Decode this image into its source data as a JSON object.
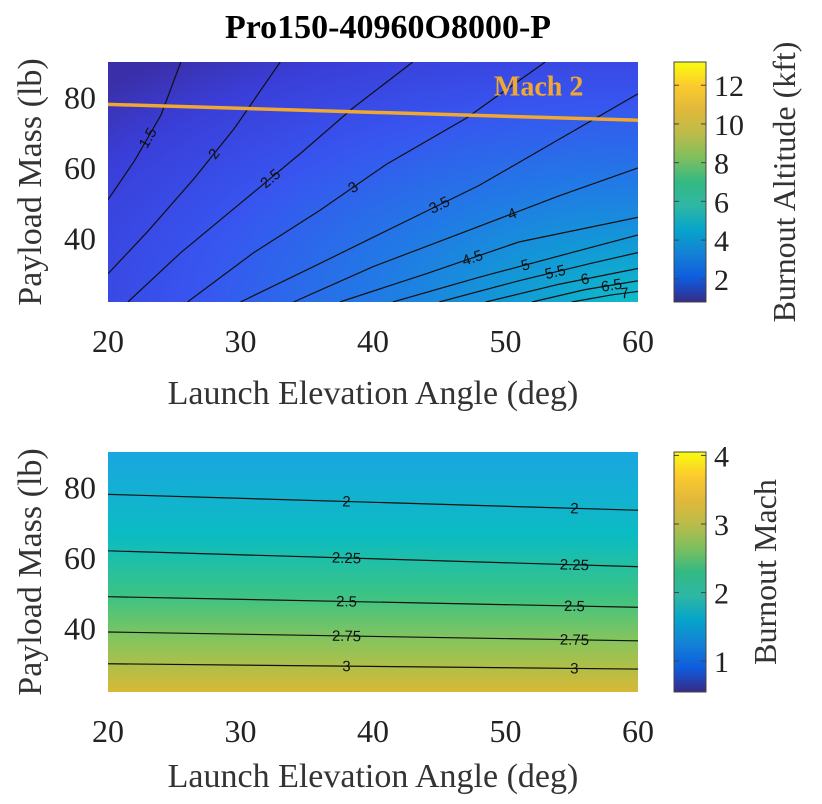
{
  "chart_data": [
    {
      "type": "contour",
      "title": "Pro150-40960O8000-P",
      "xlabel": "Launch Elevation Angle (deg)",
      "ylabel": "Payload Mass (lb)",
      "colorbar_label": "Burnout Altitude (kft)",
      "colormap": "parula",
      "xlim": [
        20,
        60
      ],
      "ylim": [
        22,
        90
      ],
      "xticks": [
        20,
        30,
        40,
        50,
        60
      ],
      "yticks": [
        40,
        60,
        80
      ],
      "clim": [
        0.8,
        13.2
      ],
      "colorbar_ticks": [
        2,
        4,
        6,
        8,
        10,
        12
      ],
      "contour_levels": [
        {
          "value": 1.5,
          "label": "1.5",
          "points": [
            [
              20,
              51
            ],
            [
              22,
              62
            ],
            [
              24,
              75
            ],
            [
              25.5,
              90
            ]
          ]
        },
        {
          "value": 2,
          "label": "2",
          "points": [
            [
              20,
              30
            ],
            [
              23,
              42
            ],
            [
              26.5,
              57
            ],
            [
              29.5,
              71
            ],
            [
              33,
              90
            ]
          ]
        },
        {
          "value": 2.5,
          "label": "2.5",
          "points": [
            [
              21.5,
              22
            ],
            [
              25.5,
              36
            ],
            [
              30,
              50
            ],
            [
              34.5,
              64
            ],
            [
              38.5,
              77
            ],
            [
              43,
              90
            ]
          ]
        },
        {
          "value": 3,
          "label": "3",
          "points": [
            [
              26,
              22
            ],
            [
              31,
              36
            ],
            [
              36,
              48
            ],
            [
              41,
              61
            ],
            [
              47,
              74
            ],
            [
              53,
              90
            ]
          ]
        },
        {
          "value": 3.5,
          "label": "3.5",
          "points": [
            [
              30,
              22
            ],
            [
              35.5,
              32
            ],
            [
              42,
              44
            ],
            [
              48,
              55
            ],
            [
              54,
              68
            ],
            [
              60,
              81
            ]
          ]
        },
        {
          "value": 4,
          "label": "4",
          "points": [
            [
              34,
              22
            ],
            [
              40,
              32
            ],
            [
              47,
              42
            ],
            [
              54,
              52
            ],
            [
              60,
              60
            ]
          ]
        },
        {
          "value": 4.5,
          "label": "4.5",
          "points": [
            [
              37.5,
              22
            ],
            [
              44,
              30
            ],
            [
              51,
              39
            ],
            [
              60,
              46
            ]
          ]
        },
        {
          "value": 5,
          "label": "5",
          "points": [
            [
              41.5,
              22
            ],
            [
              48,
              29
            ],
            [
              55,
              36
            ],
            [
              60,
              41
            ]
          ]
        },
        {
          "value": 5.5,
          "label": "5.5",
          "points": [
            [
              45,
              22
            ],
            [
              51,
              28
            ],
            [
              56.5,
              33
            ],
            [
              60,
              36
            ]
          ]
        },
        {
          "value": 6,
          "label": "6",
          "points": [
            [
              48.5,
              22
            ],
            [
              54,
              27
            ],
            [
              58,
              30
            ],
            [
              60,
              31.5
            ]
          ]
        },
        {
          "value": 6.5,
          "label": "6.5",
          "points": [
            [
              52,
              22
            ],
            [
              56,
              25.5
            ],
            [
              60,
              28
            ]
          ]
        },
        {
          "value": 7,
          "label": "7",
          "points": [
            [
              55,
              22
            ],
            [
              58,
              24
            ],
            [
              60,
              25
            ]
          ]
        }
      ],
      "annotation": {
        "text": "Mach 2",
        "color": "#f0a830",
        "line_points": [
          [
            20,
            78
          ],
          [
            60,
            73.5
          ]
        ]
      }
    },
    {
      "type": "contour",
      "xlabel": "Launch Elevation Angle (deg)",
      "ylabel": "Payload Mass (lb)",
      "colorbar_label": "Burnout Mach",
      "colormap": "parula",
      "xlim": [
        20,
        60
      ],
      "ylim": [
        22,
        90
      ],
      "xticks": [
        20,
        30,
        40,
        50,
        60
      ],
      "yticks": [
        40,
        60,
        80
      ],
      "clim": [
        0.55,
        4.05
      ],
      "colorbar_ticks": [
        1,
        2,
        3,
        4
      ],
      "contour_levels": [
        {
          "value": 2,
          "label": "2",
          "points": [
            [
              20,
              78
            ],
            [
              60,
              73.5
            ]
          ]
        },
        {
          "value": 2.25,
          "label": "2.25",
          "points": [
            [
              20,
              62
            ],
            [
              60,
              57.5
            ]
          ]
        },
        {
          "value": 2.5,
          "label": "2.5",
          "points": [
            [
              20,
              49
            ],
            [
              60,
              46
            ]
          ]
        },
        {
          "value": 2.75,
          "label": "2.75",
          "points": [
            [
              20,
              39
            ],
            [
              60,
              36.5
            ]
          ]
        },
        {
          "value": 3,
          "label": "3",
          "points": [
            [
              20,
              30
            ],
            [
              60,
              28.5
            ]
          ]
        }
      ]
    }
  ]
}
